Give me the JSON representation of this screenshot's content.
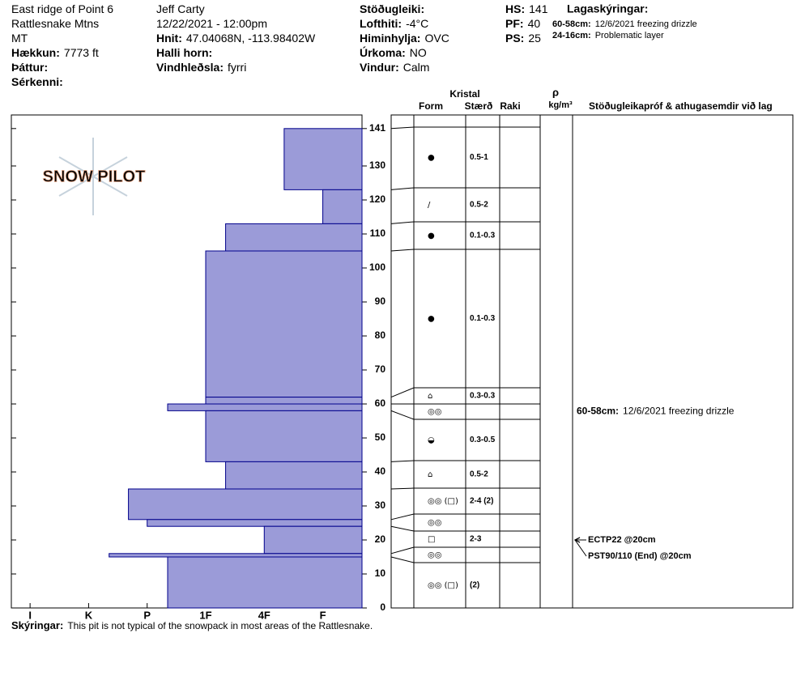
{
  "header": {
    "columns": [
      [
        {
          "value": "East ridge of Point 6"
        },
        {
          "value": "Rattlesnake Mtns"
        },
        {
          "value": "MT"
        },
        {
          "label": "Hækkun:",
          "value": "7773 ft"
        },
        {
          "label": "Þáttur:"
        },
        {
          "label": "Sérkenni:"
        }
      ],
      [
        {
          "value": "Jeff Carty"
        },
        {
          "value": "12/22/2021 - 12:00pm"
        },
        {
          "label": "Hnit:",
          "value": "47.04068N, -113.98402W"
        },
        {
          "label": "Halli horn:"
        },
        {
          "label": "Vindhleðsla:",
          "value": "fyrri"
        }
      ],
      [
        {
          "label": "Stöðugleiki:"
        },
        {
          "label": "Lofthiti:",
          "value": "-4°C"
        },
        {
          "label": "Himinhylja:",
          "value": "OVC"
        },
        {
          "label": "Úrkoma:",
          "value": "NO"
        },
        {
          "label": "Vindur:",
          "value": "Calm"
        }
      ],
      [
        {
          "label": "HS:",
          "value": "141"
        },
        {
          "label": "PF:",
          "value": "40"
        },
        {
          "label": "PS:",
          "value": "25"
        }
      ]
    ],
    "layer_notes_title": "Lagaskýringar:",
    "layer_notes": [
      {
        "label": "60-58cm:",
        "value": "12/6/2021 freezing drizzle"
      },
      {
        "label": "24-16cm:",
        "value": "Problematic layer"
      }
    ]
  },
  "logo": "SNOW PILOT",
  "table_headers": {
    "crystal": "Kristal",
    "form": "Form",
    "size": "Stærð",
    "moisture": "Raki",
    "density": "ρ",
    "density_unit": "kg/m³",
    "comments": "Stöðugleikapróf & athugasemdir við lag"
  },
  "chart_data": {
    "type": "bar",
    "orientation": "horizontal",
    "color": "#9b9bd8",
    "edge_color": "#00008b",
    "xlim": [
      6.32,
      0.33
    ],
    "xticks": [
      {
        "value": 6,
        "label": "I"
      },
      {
        "value": 5,
        "label": "K"
      },
      {
        "value": 4,
        "label": "P"
      },
      {
        "value": 3,
        "label": "1F"
      },
      {
        "value": 2,
        "label": "4F"
      },
      {
        "value": 1,
        "label": "F"
      }
    ],
    "ylim": [
      0,
      145
    ],
    "yticks": [
      0,
      10,
      20,
      30,
      40,
      50,
      60,
      70,
      80,
      90,
      100,
      110,
      120,
      130,
      141
    ],
    "layers": [
      {
        "top": 141,
        "bottom": 123,
        "hardness": 1.66,
        "form": "●",
        "size": "0.5-1"
      },
      {
        "top": 123,
        "bottom": 113,
        "hardness": 1,
        "form": "/",
        "size": "0.5-2"
      },
      {
        "top": 113,
        "bottom": 105,
        "hardness": 2.66,
        "form": "●",
        "size": "0.1-0.3"
      },
      {
        "top": 105,
        "bottom": 62,
        "hardness": 3,
        "form": "●",
        "size": "0.1-0.3"
      },
      {
        "top": 62,
        "bottom": 60,
        "hardness": 3,
        "form": "⌂",
        "size": "0.3-0.3"
      },
      {
        "top": 60,
        "bottom": 58,
        "hardness": 3.65,
        "form": "◎◎",
        "comment": {
          "label": "60-58cm:",
          "value": "12/6/2021 freezing drizzle"
        }
      },
      {
        "top": 58,
        "bottom": 43,
        "hardness": 3,
        "form": "◒",
        "size": "0.3-0.5"
      },
      {
        "top": 43,
        "bottom": 35,
        "hardness": 2.66,
        "form": "⌂",
        "size": "0.5-2"
      },
      {
        "top": 35,
        "bottom": 26,
        "hardness": 4.32,
        "form": "◎◎ (□)",
        "size": "2-4 (2)"
      },
      {
        "top": 26,
        "bottom": 24,
        "hardness": 4,
        "form": "◎◎"
      },
      {
        "top": 24,
        "bottom": 16,
        "hardness": 2,
        "form": "□",
        "size": "2-3"
      },
      {
        "top": 16,
        "bottom": 15,
        "hardness": 4.65,
        "form": "◎◎"
      },
      {
        "top": 15,
        "bottom": 0,
        "hardness": 3.65,
        "form": "◎◎ (□)",
        "size": "(2)"
      }
    ],
    "tests": [
      {
        "text": "ECTP22 @20cm",
        "depth": 20
      },
      {
        "text": "PST90/110 (End) @20cm",
        "depth": 20
      }
    ]
  },
  "footer": {
    "label": "Skýringar:",
    "text": "This pit is not typical of the snowpack in most areas of the Rattlesnake."
  }
}
